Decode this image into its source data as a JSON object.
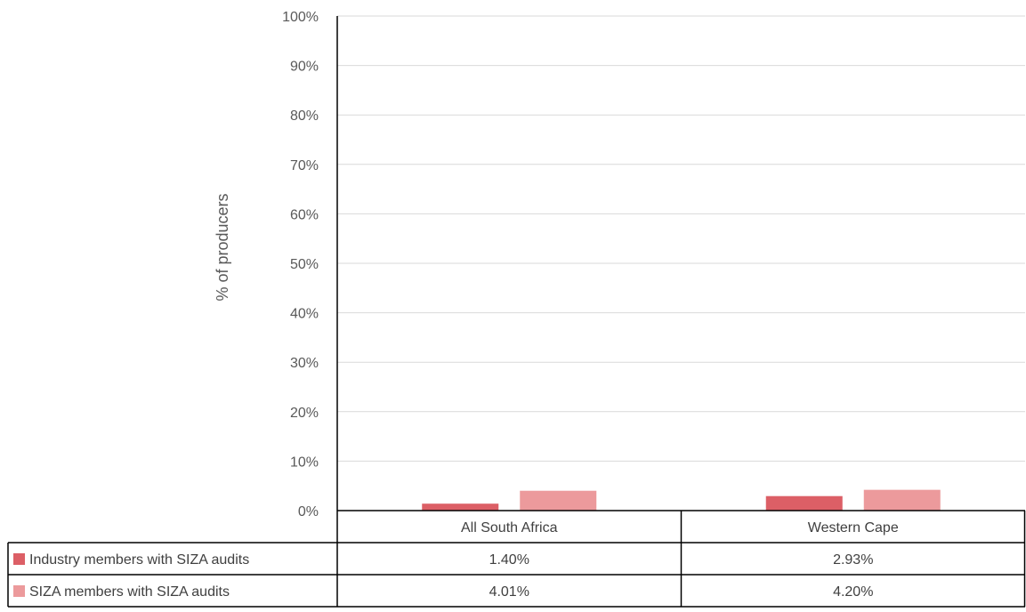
{
  "chart_data": {
    "type": "bar",
    "title": "",
    "xlabel": "",
    "ylabel": "% of producers",
    "ylim": [
      0,
      100
    ],
    "yticks": [
      "0%",
      "10%",
      "20%",
      "30%",
      "40%",
      "50%",
      "60%",
      "70%",
      "80%",
      "90%",
      "100%"
    ],
    "categories": [
      "All South Africa",
      "Western Cape"
    ],
    "series": [
      {
        "name": "Industry members with SIZA audits",
        "values": [
          1.4,
          2.93
        ],
        "labels": [
          "1.40%",
          "2.93%"
        ],
        "color": "#dc5f66"
      },
      {
        "name": "SIZA members with SIZA audits",
        "values": [
          4.01,
          4.2
        ],
        "labels": [
          "4.01%",
          "4.20%"
        ],
        "color": "#ec9a9c"
      }
    ],
    "grid": true,
    "data_table": true
  }
}
